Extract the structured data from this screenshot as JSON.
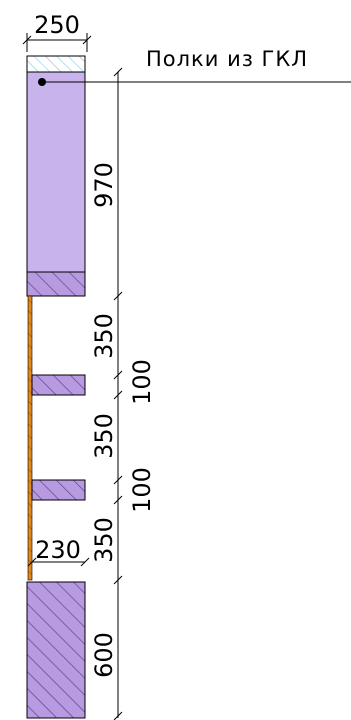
{
  "drawing": {
    "top_width": "250",
    "inner_width": "230",
    "annotation": "Полки из ГКЛ",
    "dims": {
      "d970": "970",
      "d350_1": "350",
      "d100_1": "100",
      "d350_2": "350",
      "d100_2": "100",
      "d350_3": "350",
      "d600": "600"
    }
  },
  "colors": {
    "fill_light": "#c9b3ec",
    "hatch": "#6a4d9e",
    "hatch_bg": "#b79ae0",
    "cyan_hatch": "#7fcbe6",
    "orange": "#e58a1a",
    "line": "#000000"
  }
}
